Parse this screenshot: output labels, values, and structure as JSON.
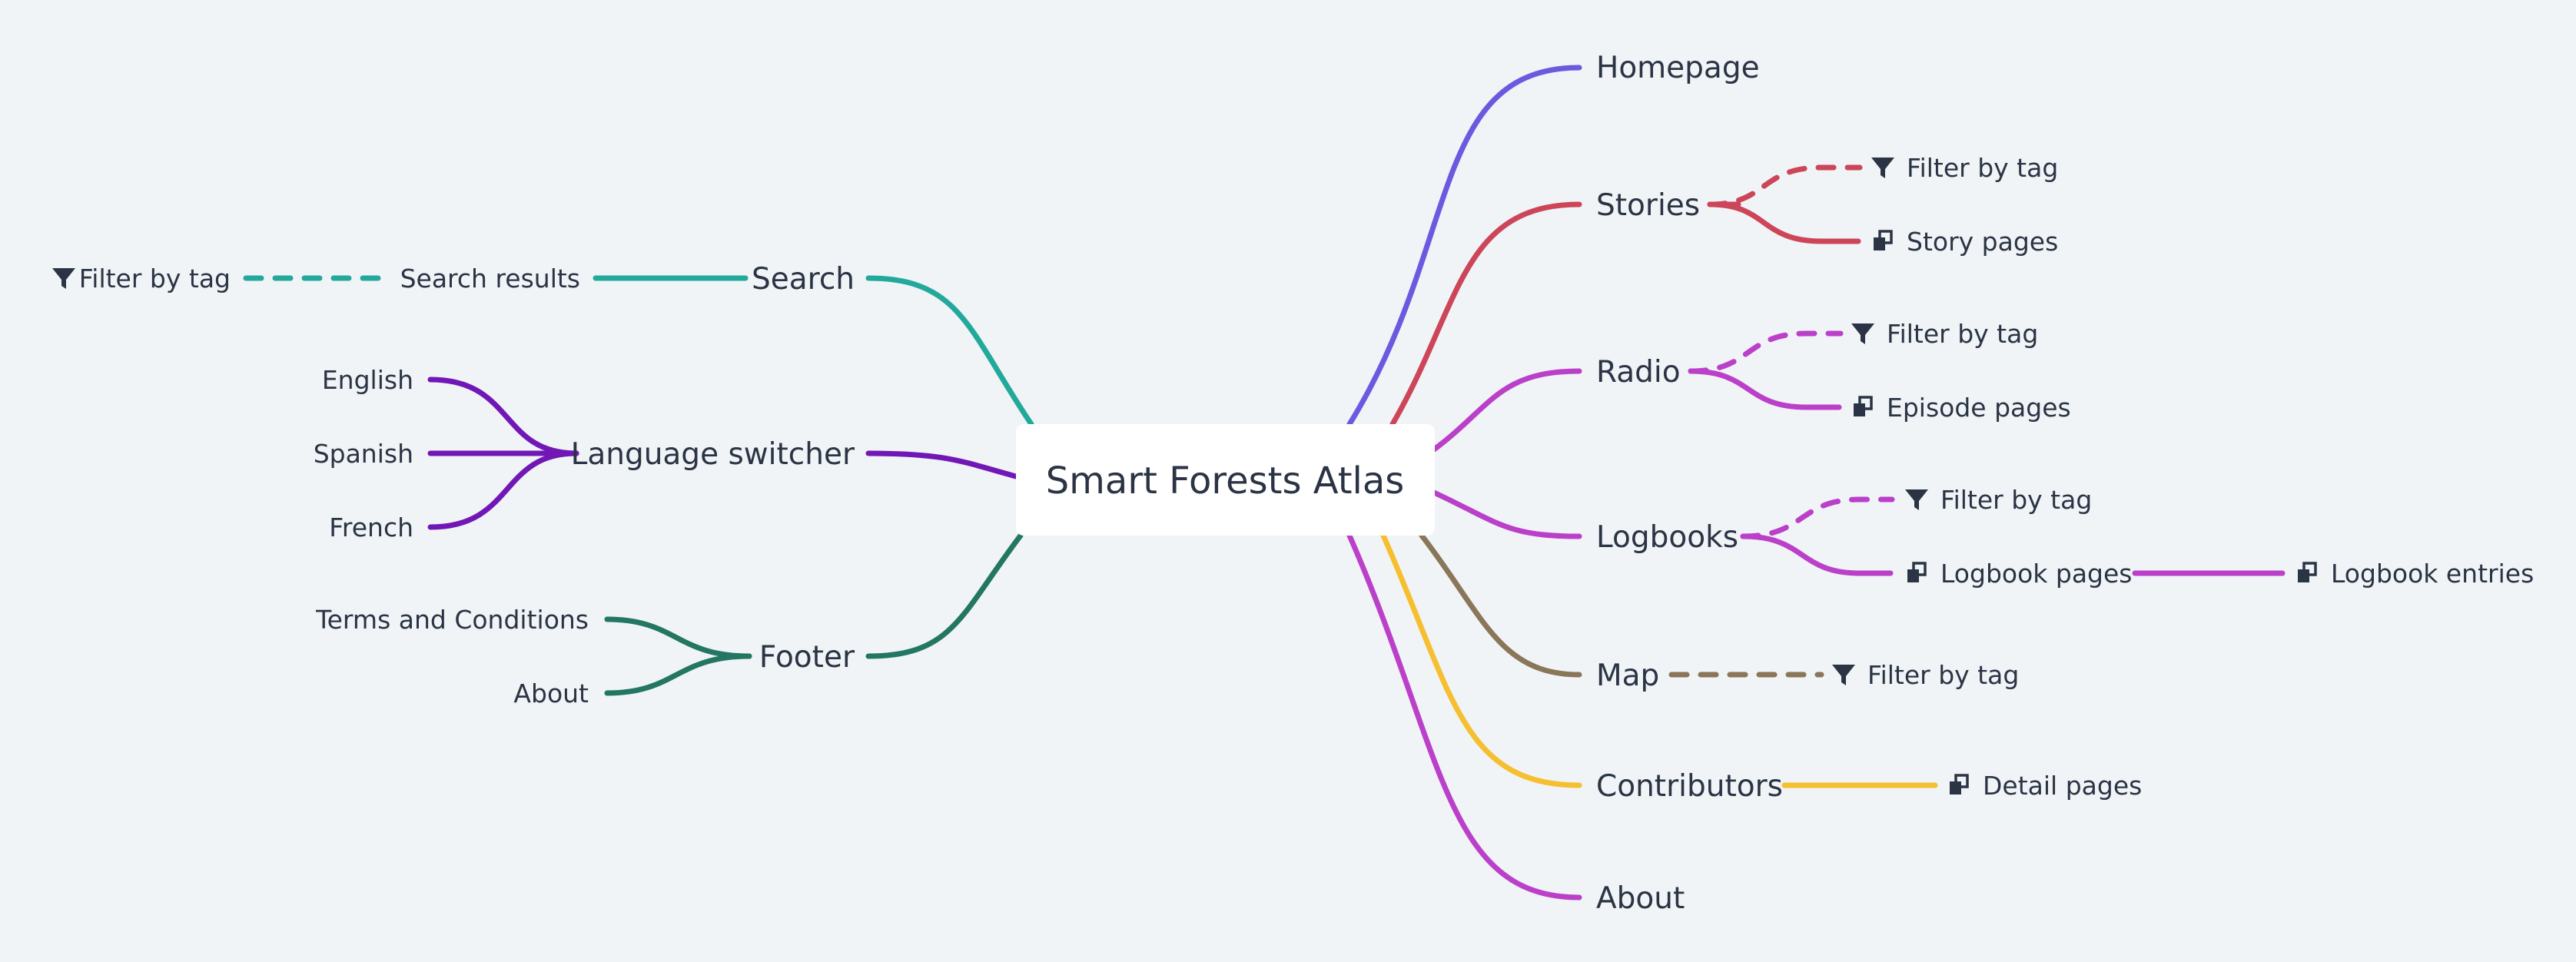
{
  "root": {
    "label": "Smart Forests Atlas"
  },
  "colors": {
    "homepage": "#6a5ae0",
    "stories": "#cd4558",
    "radio": "#bb40c9",
    "logbooks": "#bb40c9",
    "map": "#8a7658",
    "contributors": "#f5bf30",
    "about": "#bb40c9",
    "search": "#23a99b",
    "language": "#7117b6",
    "footer": "#237662"
  },
  "right": {
    "homepage": {
      "label": "Homepage"
    },
    "stories": {
      "label": "Stories",
      "filter": "Filter by tag",
      "pages": "Story pages"
    },
    "radio": {
      "label": "Radio",
      "filter": "Filter by tag",
      "pages": "Episode pages"
    },
    "logbooks": {
      "label": "Logbooks",
      "filter": "Filter by tag",
      "pages": "Logbook pages",
      "entries": "Logbook entries"
    },
    "map": {
      "label": "Map",
      "filter": "Filter by tag"
    },
    "contributors": {
      "label": "Contributors",
      "pages": "Detail pages"
    },
    "about": {
      "label": "About"
    }
  },
  "left": {
    "search": {
      "label": "Search",
      "results": "Search results",
      "filter": "Filter by tag"
    },
    "language": {
      "label": "Language switcher",
      "options": [
        "English",
        "Spanish",
        "French"
      ]
    },
    "footer": {
      "label": "Footer",
      "links": [
        "Terms and Conditions",
        "About"
      ]
    }
  },
  "icons": {
    "filter": "filter-icon",
    "pages": "pages-icon"
  }
}
